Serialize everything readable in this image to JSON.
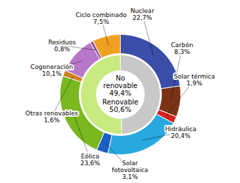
{
  "chart_data": {
    "type": "pie",
    "series": [
      {
        "categories": [
          "Nuclear\n22,7%",
          "Carbón\n8,3%",
          "Solar térmica\n1,9%",
          "Hidráulica\n20,4%",
          "Solar\nfotovoltaica\n3,1%",
          "Eólica\n23,6%",
          "Otras renovables\n1,6%",
          "Cogeneración\n10,1%",
          "Residuos\n0,8%",
          "Ciclo combinado\n7,5%"
        ],
        "values": [
          22.7,
          8.3,
          1.9,
          20.4,
          3.1,
          23.6,
          1.6,
          10.1,
          0.8,
          7.5
        ],
        "colors": [
          "#3b4da8",
          "#7b3318",
          "#d42020",
          "#29a8e0",
          "#1a60c8",
          "#7ab820",
          "#d08020",
          "#b878c8",
          "#8850a0",
          "#f0a020"
        ]
      },
      {
        "categories": [
          "No\nrenovable\n49,4%",
          "Renovable\n50,6%"
        ],
        "values": [
          49.4,
          50.6
        ],
        "colors": [
          "#c8c8c8",
          "#c8ea80"
        ]
      }
    ]
  }
}
